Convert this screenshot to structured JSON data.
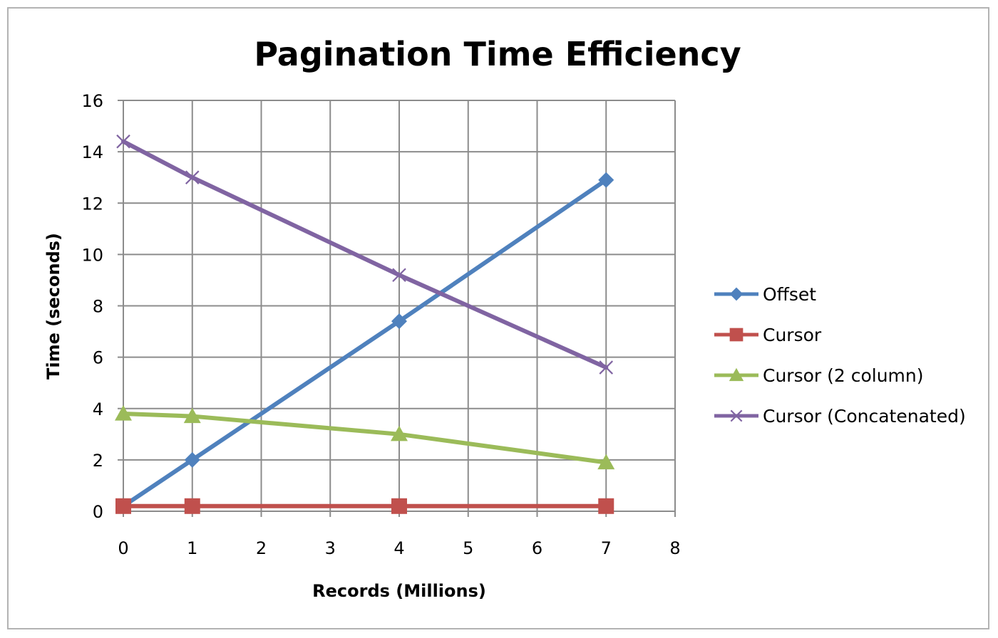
{
  "chart_data": {
    "type": "line",
    "title": "Pagination Time Efficiency",
    "xlabel": "Records (Millions)",
    "ylabel": "Time (seconds)",
    "xlim": [
      0,
      8
    ],
    "ylim": [
      0,
      16
    ],
    "x_ticks": [
      "0",
      "1",
      "2",
      "3",
      "4",
      "5",
      "6",
      "7",
      "8"
    ],
    "y_ticks": [
      "0",
      "2",
      "4",
      "6",
      "8",
      "10",
      "12",
      "14",
      "16"
    ],
    "grid": true,
    "legend_position": "right",
    "series": [
      {
        "name": "Offset",
        "color": "#4f81bd",
        "marker": "diamond",
        "x": [
          0,
          1,
          4,
          7
        ],
        "y": [
          0.2,
          2.0,
          7.4,
          12.9
        ]
      },
      {
        "name": "Cursor",
        "color": "#c0504d",
        "marker": "square",
        "x": [
          0,
          1,
          4,
          7
        ],
        "y": [
          0.2,
          0.2,
          0.2,
          0.2
        ]
      },
      {
        "name": "Cursor (2 column)",
        "color": "#9bbb59",
        "marker": "triangle",
        "x": [
          0,
          1,
          4,
          7
        ],
        "y": [
          3.8,
          3.7,
          3.0,
          1.9
        ]
      },
      {
        "name": "Cursor (Concatenated)",
        "color": "#8064a2",
        "marker": "x",
        "x": [
          0,
          1,
          4,
          7
        ],
        "y": [
          14.4,
          13.0,
          9.2,
          5.6
        ]
      }
    ]
  }
}
